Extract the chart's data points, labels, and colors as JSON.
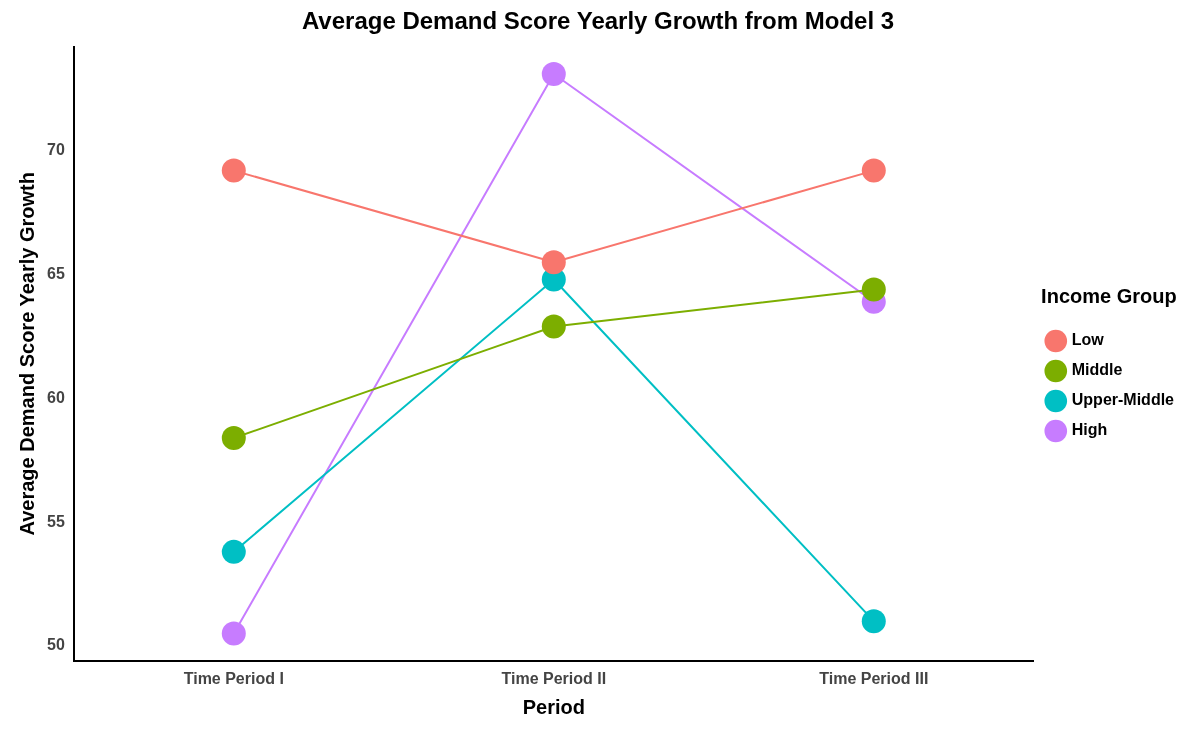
{
  "chart_data": {
    "type": "line",
    "title": "Average Demand Score Yearly Growth from Model 3",
    "xlabel": "Period",
    "ylabel": "Average Demand Score Yearly Growth",
    "legend_title": "Income Group",
    "categories": [
      "Time Period I",
      "Time Period II",
      "Time Period III"
    ],
    "series": [
      {
        "name": "Low",
        "color": "#f8766d",
        "values": [
          69.2,
          65.5,
          69.2
        ]
      },
      {
        "name": "Middle",
        "color": "#7cae00",
        "values": [
          58.4,
          62.9,
          64.4
        ]
      },
      {
        "name": "Upper-Middle",
        "color": "#00bfc4",
        "values": [
          53.8,
          64.8,
          51.0
        ]
      },
      {
        "name": "High",
        "color": "#c77cff",
        "values": [
          50.5,
          73.1,
          63.9
        ]
      }
    ],
    "ylim": [
      49.4,
      74.2
    ],
    "yticks": [
      50,
      55,
      60,
      65,
      70
    ],
    "grid": false,
    "legend": "right",
    "marker": "circle",
    "line_style": "solid"
  }
}
